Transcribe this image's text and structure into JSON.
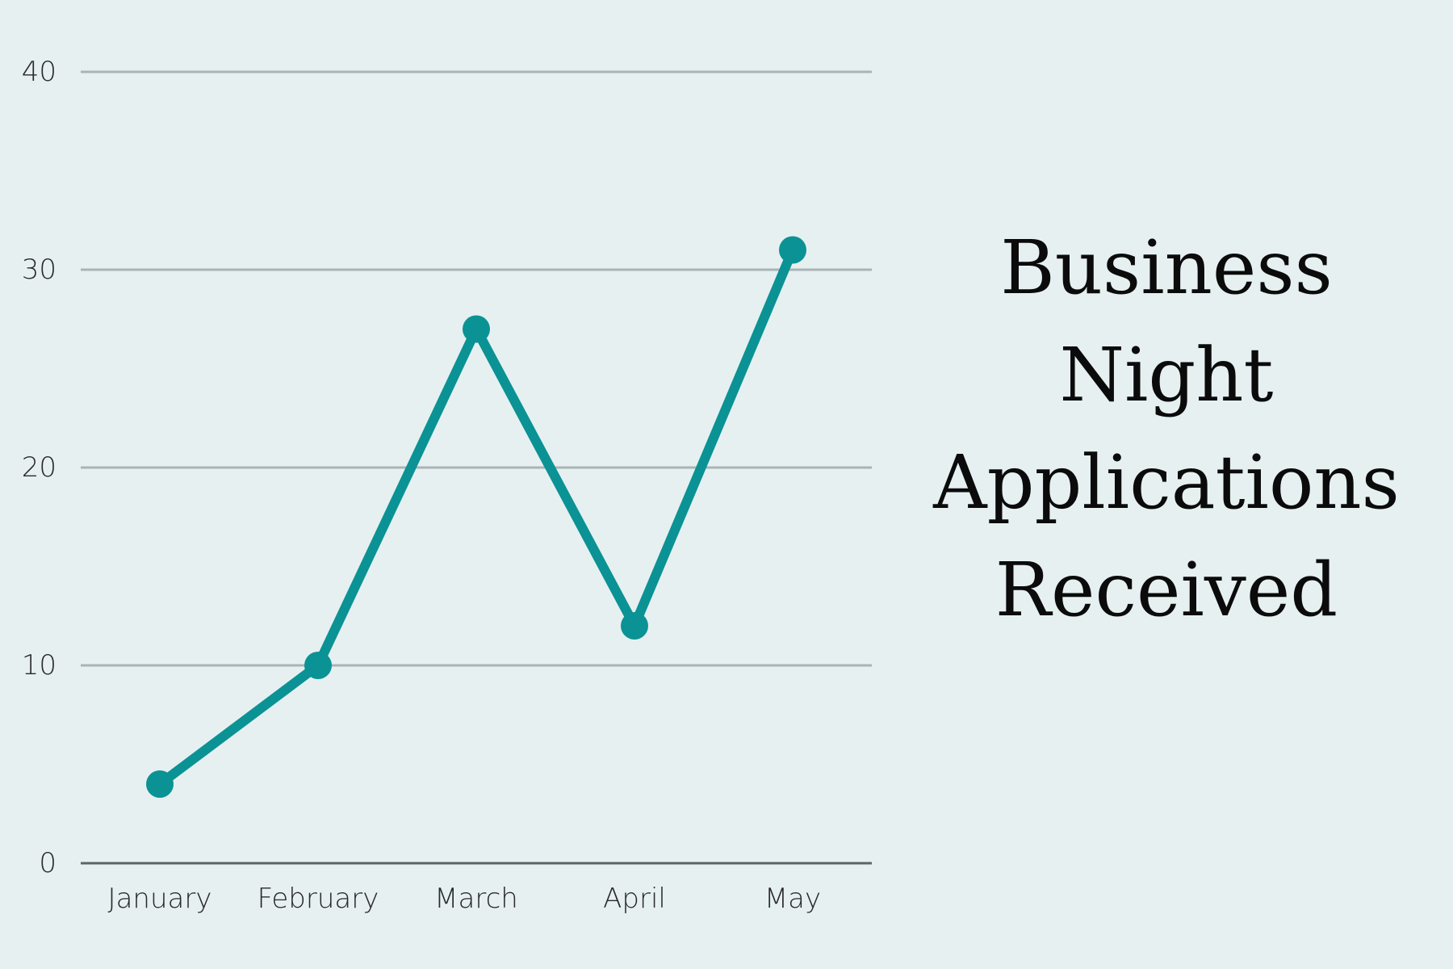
{
  "colors": {
    "background": "#e6f0f1",
    "line": "#0b9294",
    "grid": "#aab3b5",
    "axis": "#5b6466",
    "text": "#0b0b0b"
  },
  "title_lines": [
    "Business",
    "Night",
    "Applications",
    "Received"
  ],
  "chart_data": {
    "type": "line",
    "title": "Business Night Applications Received",
    "xlabel": "",
    "ylabel": "",
    "categories": [
      "January",
      "February",
      "March",
      "April",
      "May"
    ],
    "series": [
      {
        "values": [
          4,
          10,
          27,
          12,
          31
        ]
      }
    ],
    "ylim": [
      0,
      40
    ],
    "yticks": [
      "0",
      "10",
      "20",
      "30",
      "40"
    ],
    "grid": true,
    "legend": "none"
  }
}
